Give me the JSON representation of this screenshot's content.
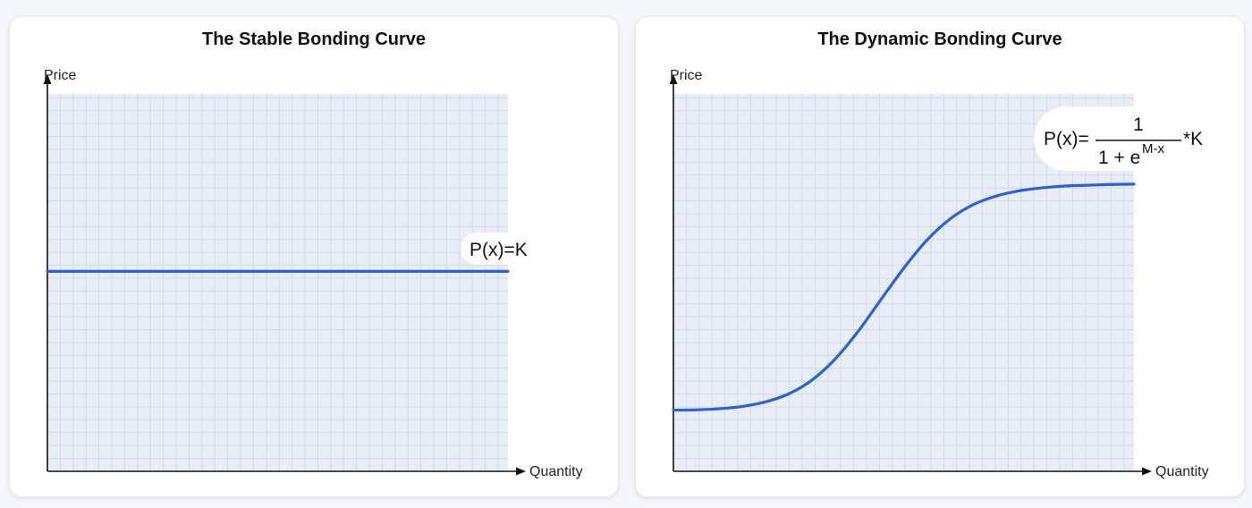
{
  "colors": {
    "plot_bg": "#e8edf8",
    "grid": "#d2daea",
    "curve": "#2a62d8",
    "axis": "#111111"
  },
  "chart_data": [
    {
      "type": "line",
      "title": "The Stable Bonding Curve",
      "xlabel": "Quantity",
      "ylabel": "Price",
      "grid": true,
      "xlim": [
        0,
        1
      ],
      "ylim": [
        0,
        1
      ],
      "series": [
        {
          "x": [
            0,
            1
          ],
          "y": [
            0.53,
            0.53
          ]
        }
      ],
      "annotation": {
        "text": "P(x)=K",
        "placement": "right, above line"
      }
    },
    {
      "type": "line",
      "title": "The Dynamic Bonding Curve",
      "xlabel": "Quantity",
      "ylabel": "Price",
      "grid": true,
      "xlim": [
        0,
        1
      ],
      "ylim": [
        0,
        1
      ],
      "series": [
        {
          "x": [
            0,
            0.05,
            0.1,
            0.15,
            0.2,
            0.25,
            0.3,
            0.35,
            0.4,
            0.45,
            0.5,
            0.55,
            0.6,
            0.65,
            0.7,
            0.75,
            0.8,
            0.85,
            0.9,
            0.95,
            1.0
          ],
          "y": [
            0.162,
            0.163,
            0.166,
            0.172,
            0.184,
            0.205,
            0.241,
            0.296,
            0.369,
            0.454,
            0.538,
            0.612,
            0.668,
            0.706,
            0.729,
            0.743,
            0.751,
            0.756,
            0.758,
            0.76,
            0.761
          ]
        }
      ],
      "annotation": {
        "prefix": "P(x)=",
        "numerator": "1",
        "denominator_base": "1 + e",
        "denominator_exp": "M-x",
        "suffix": "*K",
        "placement": "top-right"
      }
    }
  ]
}
